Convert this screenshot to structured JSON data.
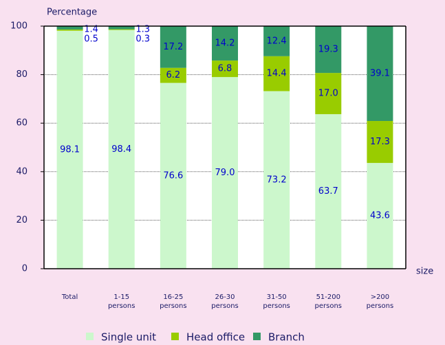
{
  "chart_data": {
    "type": "stacked_bar",
    "y_label": "Percentage",
    "x_label": "size",
    "categories": [
      "Total",
      "1-15 persons",
      "16-25 persons",
      "26-30 persons",
      "31-50 persons",
      "51-200 persons",
      ">200 persons"
    ],
    "series": [
      {
        "name": "Single unit",
        "color": "#ccf7cc",
        "values": [
          98.1,
          98.4,
          76.6,
          79.0,
          73.2,
          63.7,
          43.6
        ],
        "value_labels": [
          "98.1",
          "98.4",
          "76.6",
          "79.0",
          "73.2",
          "63.7",
          "43.6"
        ]
      },
      {
        "name": "Head office",
        "color": "#99cc00",
        "values": [
          0.5,
          0.3,
          6.2,
          6.8,
          14.4,
          17.0,
          17.3
        ],
        "value_labels": [
          "0.5",
          "0.3",
          "6.2",
          "6.8",
          "14.4",
          "17.0",
          "17.3"
        ]
      },
      {
        "name": "Branch",
        "color": "#339966",
        "values": [
          1.4,
          1.3,
          17.2,
          14.2,
          12.4,
          19.3,
          39.1
        ],
        "value_labels": [
          "1.4",
          "1.3",
          "17.2",
          "14.2",
          "12.4",
          "19.3",
          "39.1"
        ]
      }
    ],
    "ylim": [
      0,
      100
    ],
    "yticks": [
      0,
      20,
      40,
      60,
      80,
      100
    ],
    "grid": true
  }
}
